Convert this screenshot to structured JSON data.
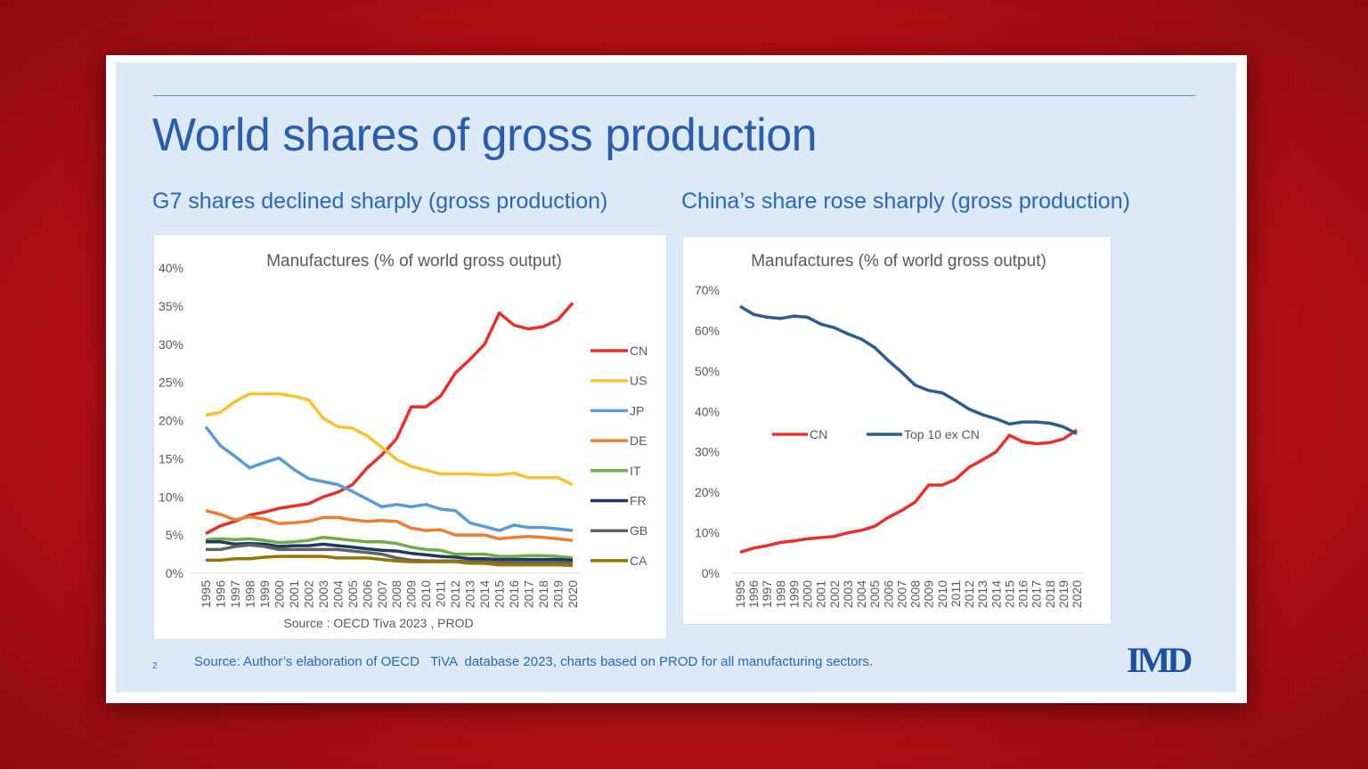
{
  "slide": {
    "title": "World shares of gross production",
    "left_subtitle": "G7 shares declined sharply (gross production)",
    "right_subtitle": "China’s share rose sharply (gross production)",
    "page_number": "2",
    "source": "Source: Author’s elaboration of OECD   TiVA  database 2023, charts based on PROD for all manufacturing sectors.",
    "logo": "IMD"
  },
  "chart_data": [
    {
      "type": "line",
      "title": "Manufactures (% of world gross output)",
      "note": "Source : OECD Tiva 2023 , PROD",
      "x": [
        1995,
        1996,
        1997,
        1998,
        1999,
        2000,
        2001,
        2002,
        2003,
        2004,
        2005,
        2006,
        2007,
        2008,
        2009,
        2010,
        2011,
        2012,
        2013,
        2014,
        2015,
        2016,
        2017,
        2018,
        2019,
        2020
      ],
      "ylim": [
        0,
        40
      ],
      "yticks": [
        "0%",
        "5%",
        "10%",
        "15%",
        "20%",
        "25%",
        "30%",
        "35%",
        "40%"
      ],
      "legend": "right",
      "grid": false,
      "series": [
        {
          "name": "CN",
          "color": "#e8302a",
          "values": [
            5.2,
            6.2,
            6.8,
            7.6,
            8.0,
            8.5,
            8.8,
            9.1,
            10.0,
            10.6,
            11.6,
            13.8,
            15.5,
            17.6,
            21.8,
            21.8,
            23.2,
            26.2,
            28.0,
            30.0,
            34.1,
            32.5,
            32.0,
            32.3,
            33.2,
            35.4
          ]
        },
        {
          "name": "US",
          "color": "#f5c230",
          "values": [
            20.7,
            21.1,
            22.5,
            23.5,
            23.5,
            23.5,
            23.2,
            22.7,
            20.3,
            19.2,
            19.0,
            18.0,
            16.5,
            14.9,
            14.0,
            13.5,
            13.0,
            13.0,
            13.0,
            12.9,
            12.9,
            13.1,
            12.5,
            12.5,
            12.5,
            11.6
          ]
        },
        {
          "name": "JP",
          "color": "#5b9bd5",
          "values": [
            19.2,
            16.7,
            15.3,
            13.8,
            14.5,
            15.1,
            13.6,
            12.4,
            12.0,
            11.6,
            10.7,
            9.7,
            8.7,
            9.0,
            8.7,
            9.0,
            8.4,
            8.2,
            6.6,
            6.1,
            5.6,
            6.3,
            6.0,
            6.0,
            5.8,
            5.6
          ]
        },
        {
          "name": "DE",
          "color": "#ed7d31",
          "values": [
            8.2,
            7.7,
            7.0,
            7.4,
            7.1,
            6.5,
            6.6,
            6.8,
            7.3,
            7.3,
            7.0,
            6.8,
            6.9,
            6.8,
            5.9,
            5.6,
            5.7,
            5.0,
            5.0,
            5.0,
            4.5,
            4.7,
            4.8,
            4.7,
            4.5,
            4.3
          ]
        },
        {
          "name": "IT",
          "color": "#70ad47",
          "values": [
            4.4,
            4.5,
            4.4,
            4.5,
            4.3,
            4.0,
            4.1,
            4.3,
            4.7,
            4.5,
            4.3,
            4.1,
            4.1,
            3.9,
            3.4,
            3.1,
            3.0,
            2.5,
            2.5,
            2.5,
            2.2,
            2.2,
            2.3,
            2.3,
            2.2,
            2.0
          ]
        },
        {
          "name": "FR",
          "color": "#1f3864",
          "values": [
            4.1,
            4.1,
            3.8,
            3.9,
            3.8,
            3.5,
            3.6,
            3.6,
            3.8,
            3.6,
            3.4,
            3.2,
            3.0,
            2.9,
            2.6,
            2.4,
            2.2,
            2.1,
            1.9,
            1.9,
            1.8,
            1.8,
            1.8,
            1.8,
            1.8,
            1.7
          ]
        },
        {
          "name": "GB",
          "color": "#636363",
          "values": [
            3.1,
            3.1,
            3.5,
            3.7,
            3.5,
            3.1,
            3.1,
            3.1,
            3.1,
            3.1,
            2.9,
            2.7,
            2.5,
            2.0,
            1.7,
            1.6,
            1.6,
            1.6,
            1.5,
            1.5,
            1.4,
            1.4,
            1.4,
            1.4,
            1.4,
            1.3
          ]
        },
        {
          "name": "CA",
          "color": "#997300",
          "values": [
            1.7,
            1.7,
            1.9,
            1.9,
            2.1,
            2.2,
            2.2,
            2.2,
            2.2,
            2.0,
            2.0,
            2.0,
            1.8,
            1.6,
            1.5,
            1.5,
            1.5,
            1.5,
            1.3,
            1.3,
            1.1,
            1.1,
            1.1,
            1.1,
            1.1,
            1.0
          ]
        }
      ]
    },
    {
      "type": "line",
      "title": "Manufactures (% of world gross output)",
      "x": [
        1995,
        1996,
        1997,
        1998,
        1999,
        2000,
        2001,
        2002,
        2003,
        2004,
        2005,
        2006,
        2007,
        2008,
        2009,
        2010,
        2011,
        2012,
        2013,
        2014,
        2015,
        2016,
        2017,
        2018,
        2019,
        2020
      ],
      "ylim": [
        0,
        70
      ],
      "yticks": [
        "0%",
        "10%",
        "20%",
        "30%",
        "40%",
        "50%",
        "60%",
        "70%"
      ],
      "legend": "center",
      "grid": false,
      "series": [
        {
          "name": "CN",
          "color": "#e8302a",
          "values": [
            5.2,
            6.2,
            6.8,
            7.6,
            8.0,
            8.5,
            8.8,
            9.1,
            10.0,
            10.6,
            11.6,
            13.8,
            15.5,
            17.6,
            21.8,
            21.8,
            23.2,
            26.2,
            28.0,
            30.0,
            34.1,
            32.5,
            32.0,
            32.3,
            33.2,
            35.4
          ]
        },
        {
          "name": "Top  10 ex CN",
          "color": "#2e5c8f",
          "values": [
            66.0,
            64.0,
            63.3,
            63.0,
            63.6,
            63.3,
            61.6,
            60.7,
            59.2,
            57.9,
            55.8,
            52.6,
            49.7,
            46.5,
            45.2,
            44.6,
            42.7,
            40.6,
            39.2,
            38.2,
            36.9,
            37.4,
            37.4,
            37.1,
            36.2,
            34.5
          ]
        }
      ]
    }
  ]
}
